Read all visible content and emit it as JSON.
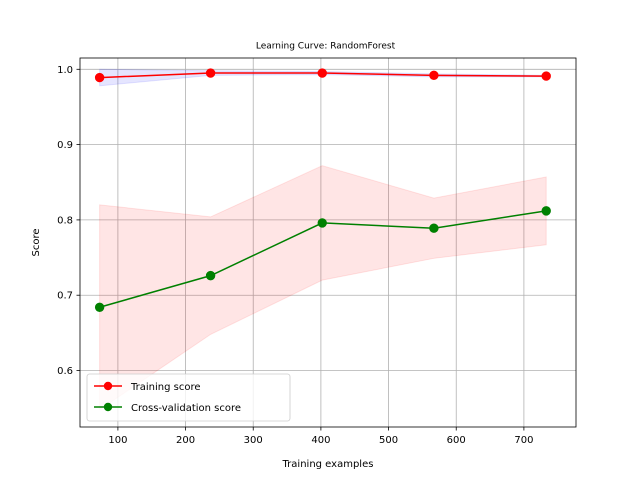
{
  "chart_data": {
    "type": "line",
    "title": "Learning Curve: RandomForest",
    "xlabel": "Training examples",
    "ylabel": "Score",
    "xlim": [
      44,
      777
    ],
    "ylim": [
      0.525,
      1.015
    ],
    "xticks": [
      100,
      200,
      300,
      400,
      500,
      600,
      700
    ],
    "yticks": [
      0.6,
      0.7,
      0.8,
      0.9,
      1.0
    ],
    "ytick_labels": [
      "0.6",
      "0.7",
      "0.8",
      "0.9",
      "1.0"
    ],
    "grid": true,
    "legend_position": "lower-left",
    "x": [
      73,
      237,
      402,
      567,
      733
    ],
    "series": [
      {
        "name": "Training score",
        "color": "#ff0000",
        "band_color": "#0000ff",
        "values": [
          0.989,
          0.995,
          0.995,
          0.992,
          0.991
        ],
        "lower": [
          0.978,
          0.992,
          0.993,
          0.99,
          0.99
        ],
        "upper": [
          1.0,
          0.998,
          0.997,
          0.994,
          0.992
        ]
      },
      {
        "name": "Cross-validation score",
        "color": "#008000",
        "band_color": "#ff0000",
        "values": [
          0.684,
          0.726,
          0.796,
          0.789,
          0.812
        ],
        "lower": [
          0.548,
          0.648,
          0.72,
          0.749,
          0.767
        ],
        "upper": [
          0.82,
          0.804,
          0.872,
          0.829,
          0.857
        ]
      }
    ]
  }
}
